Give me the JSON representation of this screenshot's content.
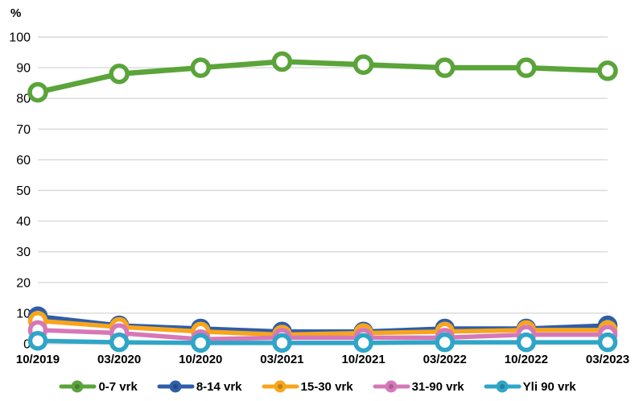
{
  "chart_data": {
    "type": "line",
    "title": "",
    "y_axis_unit_label": "%",
    "xlabel": "",
    "ylabel": "%",
    "ylim": [
      0,
      100
    ],
    "ytick_step": 10,
    "grid": true,
    "legend_position": "bottom",
    "categories": [
      "10/2019",
      "03/2020",
      "10/2020",
      "03/2021",
      "10/2021",
      "03/2022",
      "10/2022",
      "03/2023"
    ],
    "series": [
      {
        "name": "0-7 vrk",
        "color": "#5AA43A",
        "values": [
          82,
          88,
          90,
          92,
          91,
          90,
          90,
          89
        ]
      },
      {
        "name": "8-14 vrk",
        "color": "#2E5DA9",
        "values": [
          9,
          6,
          5,
          4,
          4,
          5,
          5,
          6
        ]
      },
      {
        "name": "15-30 vrk",
        "color": "#F7A51C",
        "values": [
          7.5,
          5.5,
          4,
          3,
          3.5,
          4,
          4.5,
          4.5
        ]
      },
      {
        "name": "31-90 vrk",
        "color": "#D678B8",
        "values": [
          4.5,
          3.5,
          1.5,
          2,
          2,
          2,
          3,
          3
        ]
      },
      {
        "name": "Yli 90 vrk",
        "color": "#2FA5C7",
        "values": [
          1,
          0.5,
          0.3,
          0.3,
          0.3,
          0.5,
          0.5,
          0.5
        ]
      }
    ],
    "gridline_color": "#D9D9D9",
    "text_color": "#000000"
  }
}
